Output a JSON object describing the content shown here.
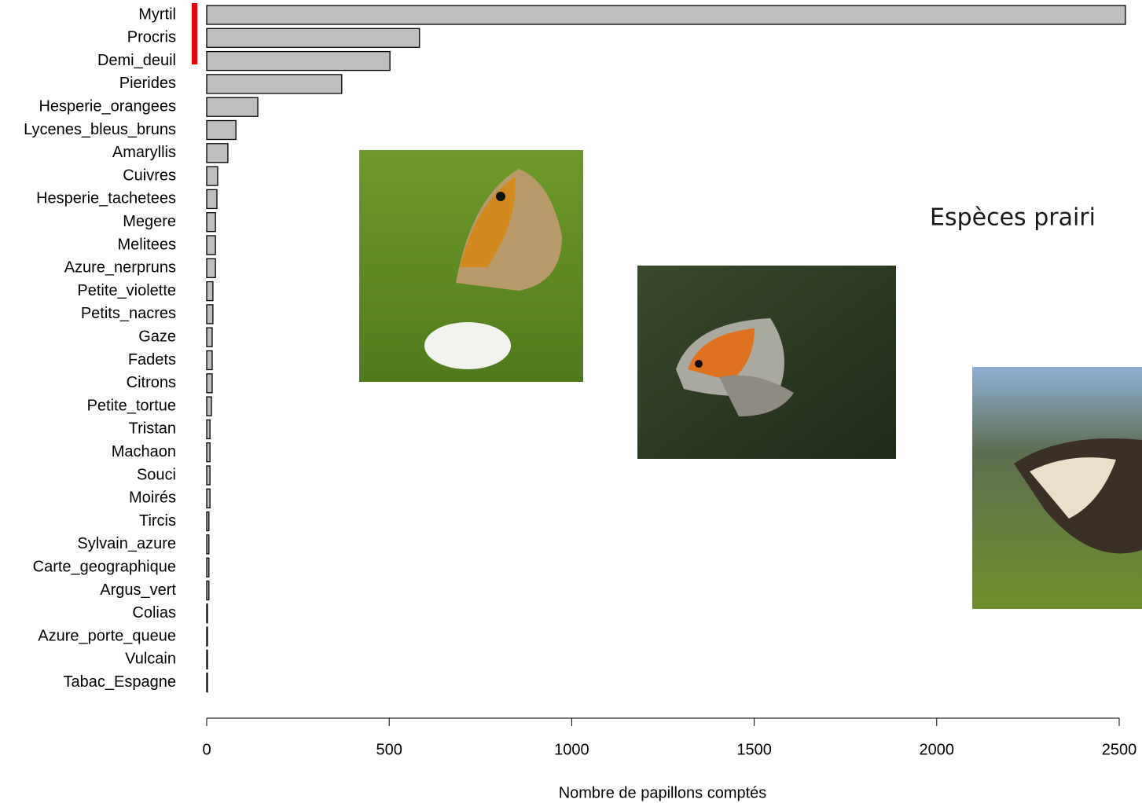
{
  "chart_data": {
    "type": "barh",
    "xlabel": "Nombre de papillons comptés",
    "annotation": "Espèces prairi",
    "categories": [
      "Myrtil",
      "Procris",
      "Demi_deuil",
      "Pierides",
      "Hesperie_orangees",
      "Lycenes_bleus_bruns",
      "Amaryllis",
      "Cuivres",
      "Hesperie_tachetees",
      "Megere",
      "Melitees",
      "Azure_nerpruns",
      "Petite_violette",
      "Petits_nacres",
      "Gaze",
      "Fadets",
      "Citrons",
      "Petite_tortue",
      "Tristan",
      "Machaon",
      "Souci",
      "Moirés",
      "Tircis",
      "Sylvain_azure",
      "Carte_geographique",
      "Argus_vert",
      "Colias",
      "Azure_porte_queue",
      "Vulcain",
      "Tabac_Espagne"
    ],
    "values": [
      2517,
      583,
      502,
      370,
      140,
      80,
      58,
      30,
      28,
      24,
      24,
      24,
      17,
      17,
      15,
      15,
      15,
      13,
      9,
      9,
      9,
      9,
      6,
      6,
      6,
      6,
      2,
      2,
      2,
      2
    ],
    "color": "#bebebe",
    "xlim": [
      0,
      2500
    ],
    "xticks": [
      0,
      500,
      1000,
      1500,
      2000,
      2500
    ]
  }
}
